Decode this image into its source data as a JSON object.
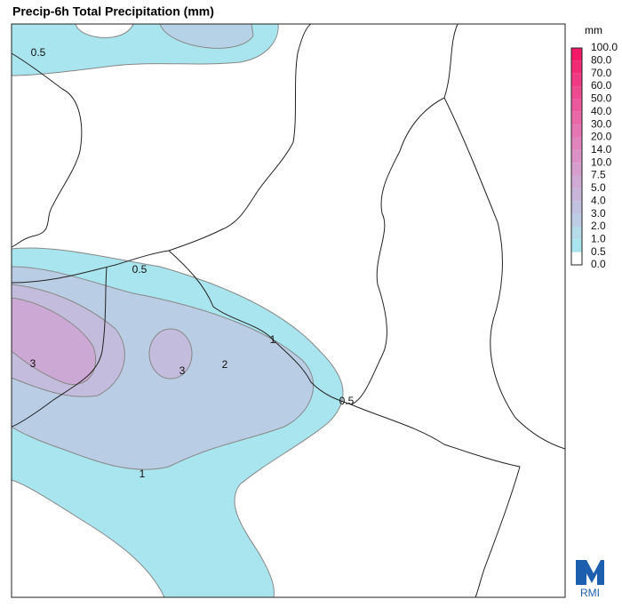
{
  "header": {
    "title": "Precip-6h Total Precipitation (mm)"
  },
  "colorbar": {
    "unit": "mm",
    "labels": [
      "0.0",
      "0.5",
      "1.0",
      "2.0",
      "3.0",
      "4.0",
      "5.0",
      "7.5",
      "10.0",
      "14.0",
      "20.0",
      "30.0",
      "40.0",
      "50.0",
      "60.0",
      "70.0",
      "80.0",
      "100.0"
    ],
    "colors": [
      "#ffffff",
      "#a9e5ee",
      "#b6dbe9",
      "#bccde5",
      "#c2c2e0",
      "#c8b6da",
      "#cfaad4",
      "#d69ecd",
      "#dc91c6",
      "#e184bd",
      "#e576b3",
      "#e868a8",
      "#eb599c",
      "#ee4a90",
      "#f03a83",
      "#f22b76",
      "#f41a68"
    ]
  },
  "contour_labels": [
    "0.5",
    "0.5",
    "1",
    "3",
    "3",
    "2",
    "0.5",
    "1"
  ],
  "logo": {
    "text": "RMI"
  }
}
